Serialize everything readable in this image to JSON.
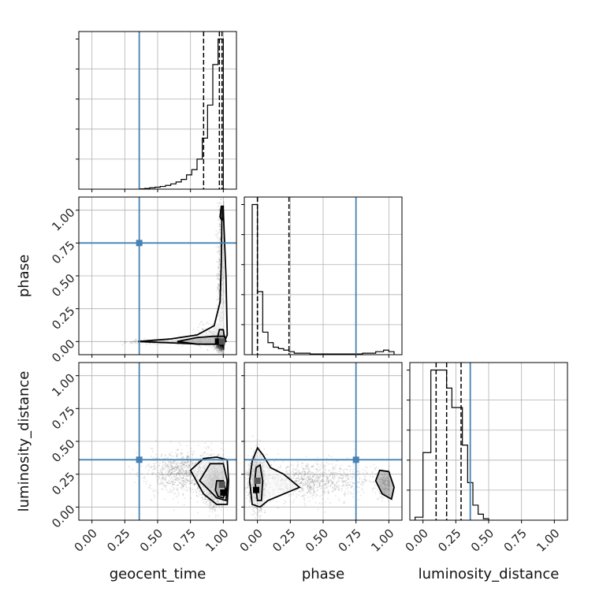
{
  "chart_data": {
    "type": "corner",
    "parameters": [
      "geocent_time",
      "phase",
      "luminosity_distance"
    ],
    "axis_labels": {
      "x": [
        "geocent_time",
        "phase",
        "luminosity_distance"
      ],
      "y": [
        "",
        "phase",
        "luminosity_distance"
      ]
    },
    "tick_values": [
      0.0,
      0.25,
      0.5,
      0.75,
      1.0
    ],
    "tick_labels": [
      "0.00",
      "0.25",
      "0.50",
      "0.75",
      "1.00"
    ],
    "range": [
      [
        -0.1,
        1.1
      ],
      [
        -0.1,
        1.1
      ],
      [
        -0.1,
        1.1
      ]
    ],
    "grid": true,
    "truths": [
      0.36,
      0.75,
      0.36
    ],
    "truth_color": "#4682b4",
    "quantiles": [
      [
        0.85,
        0.97,
        0.99
      ],
      [
        0.0,
        0.0,
        0.24
      ],
      [
        0.1,
        0.18,
        0.29
      ]
    ],
    "histograms": [
      {
        "bin_edges": [
          0.36,
          0.4,
          0.44,
          0.48,
          0.52,
          0.56,
          0.6,
          0.64,
          0.68,
          0.72,
          0.76,
          0.8,
          0.84,
          0.88,
          0.92,
          0.96,
          0.98,
          1.0,
          1.02
        ],
        "counts": [
          0.2,
          0.5,
          0.9,
          1.3,
          1.8,
          2.5,
          3.5,
          4.8,
          6.5,
          9.5,
          13,
          20,
          34,
          56,
          83,
          100,
          100,
          0
        ]
      },
      {
        "bin_edges": [
          -0.04,
          0.0,
          0.04,
          0.08,
          0.12,
          0.16,
          0.2,
          0.24,
          0.28,
          0.32,
          0.4,
          0.6,
          0.8,
          0.9,
          0.96,
          1.0,
          1.04
        ],
        "counts": [
          100,
          42,
          15,
          8,
          5,
          4,
          3,
          2,
          1,
          1,
          0.5,
          0.5,
          1,
          2,
          3,
          2
        ]
      },
      {
        "bin_edges": [
          -0.06,
          0.0,
          0.06,
          0.1,
          0.14,
          0.18,
          0.22,
          0.26,
          0.3,
          0.34,
          0.38,
          0.42,
          0.46,
          0.5
        ],
        "counts": [
          2,
          45,
          100,
          100,
          100,
          88,
          75,
          75,
          50,
          25,
          10,
          4,
          1
        ]
      }
    ],
    "contour_panels": [
      {
        "x_param": "geocent_time",
        "y_param": "phase",
        "points": {
          "n": 3000,
          "components": [
            {
              "w": 0.6,
              "mx": 0.985,
              "sx": 0.02,
              "my": 0.0,
              "sy": 0.03
            },
            {
              "w": 0.2,
              "mx": 0.985,
              "sx": 0.015,
              "my": 0.5,
              "sy": 0.3
            },
            {
              "w": 0.12,
              "mx": 0.6,
              "sx": 0.15,
              "my": 0.0,
              "sy": 0.01
            },
            {
              "w": 0.08,
              "mx": 0.92,
              "sx": 0.06,
              "my": 0.04,
              "sy": 0.05
            }
          ]
        },
        "contours": [
          [
            [
              0.35,
              0.0
            ],
            [
              0.6,
              0.02
            ],
            [
              0.8,
              0.05
            ],
            [
              0.93,
              0.12
            ],
            [
              0.975,
              0.3
            ],
            [
              0.985,
              0.6
            ],
            [
              0.99,
              1.03
            ],
            [
              1.0,
              1.0
            ],
            [
              1.02,
              0.5
            ],
            [
              1.03,
              0.05
            ],
            [
              1.0,
              -0.02
            ],
            [
              0.85,
              -0.02
            ],
            [
              0.6,
              -0.01
            ],
            [
              0.35,
              0.0
            ]
          ],
          [
            [
              0.95,
              0.0
            ],
            [
              0.97,
              0.09
            ],
            [
              1.0,
              0.09
            ],
            [
              1.01,
              0.02
            ],
            [
              0.99,
              -0.02
            ],
            [
              0.95,
              0.0
            ]
          ],
          [
            [
              0.65,
              0.0
            ],
            [
              0.8,
              0.03
            ],
            [
              0.92,
              0.04
            ],
            [
              1.01,
              0.04
            ],
            [
              1.02,
              0.0
            ],
            [
              0.95,
              -0.02
            ],
            [
              0.8,
              -0.02
            ],
            [
              0.65,
              0.0
            ]
          ],
          [
            [
              0.975,
              0.95
            ],
            [
              0.985,
              1.03
            ],
            [
              1.0,
              1.03
            ],
            [
              1.0,
              0.95
            ],
            [
              0.99,
              0.92
            ],
            [
              0.975,
              0.95
            ]
          ]
        ]
      },
      {
        "x_param": "geocent_time",
        "y_param": "luminosity_distance",
        "points": {
          "n": 3000,
          "components": [
            {
              "w": 0.65,
              "mx": 0.95,
              "sx": 0.05,
              "my": 0.18,
              "sy": 0.08
            },
            {
              "w": 0.35,
              "mx": 0.72,
              "sx": 0.14,
              "my": 0.26,
              "sy": 0.08
            }
          ]
        },
        "contours": [
          [
            [
              0.75,
              0.28
            ],
            [
              0.85,
              0.37
            ],
            [
              0.95,
              0.38
            ],
            [
              1.03,
              0.36
            ],
            [
              1.04,
              0.2
            ],
            [
              1.03,
              0.02
            ],
            [
              0.95,
              0.02
            ],
            [
              0.85,
              0.1
            ],
            [
              0.75,
              0.28
            ]
          ],
          [
            [
              0.82,
              0.2
            ],
            [
              0.9,
              0.33
            ],
            [
              1.0,
              0.33
            ],
            [
              1.03,
              0.2
            ],
            [
              1.02,
              0.05
            ],
            [
              0.95,
              0.07
            ],
            [
              0.9,
              0.12
            ],
            [
              0.82,
              0.2
            ]
          ],
          [
            [
              0.94,
              0.13
            ],
            [
              0.95,
              0.2
            ],
            [
              1.0,
              0.2
            ],
            [
              1.02,
              0.12
            ],
            [
              1.0,
              0.07
            ],
            [
              0.96,
              0.08
            ],
            [
              0.94,
              0.13
            ]
          ]
        ]
      },
      {
        "x_param": "phase",
        "y_param": "luminosity_distance",
        "points": {
          "n": 3000,
          "components": [
            {
              "w": 0.55,
              "mx": 0.0,
              "sx": 0.03,
              "my": 0.2,
              "sy": 0.1
            },
            {
              "w": 0.35,
              "mx": 0.4,
              "sx": 0.25,
              "my": 0.2,
              "sy": 0.07
            },
            {
              "w": 0.1,
              "mx": 0.97,
              "sx": 0.03,
              "my": 0.17,
              "sy": 0.05
            }
          ]
        },
        "contours": [
          [
            [
              -0.04,
              0.35
            ],
            [
              0.0,
              0.45
            ],
            [
              0.04,
              0.4
            ],
            [
              0.1,
              0.3
            ],
            [
              0.2,
              0.25
            ],
            [
              0.32,
              0.15
            ],
            [
              0.2,
              0.1
            ],
            [
              0.08,
              0.05
            ],
            [
              0.02,
              0.0
            ],
            [
              -0.04,
              0.02
            ],
            [
              -0.06,
              0.2
            ],
            [
              -0.04,
              0.35
            ]
          ],
          [
            [
              -0.02,
              0.2
            ],
            [
              -0.01,
              0.3
            ],
            [
              0.02,
              0.32
            ],
            [
              0.04,
              0.2
            ],
            [
              0.03,
              0.05
            ],
            [
              0.0,
              0.05
            ],
            [
              -0.02,
              0.2
            ]
          ],
          [
            [
              0.9,
              0.2
            ],
            [
              0.93,
              0.28
            ],
            [
              1.0,
              0.27
            ],
            [
              1.04,
              0.15
            ],
            [
              1.02,
              0.06
            ],
            [
              0.95,
              0.1
            ],
            [
              0.9,
              0.2
            ]
          ]
        ]
      }
    ]
  }
}
